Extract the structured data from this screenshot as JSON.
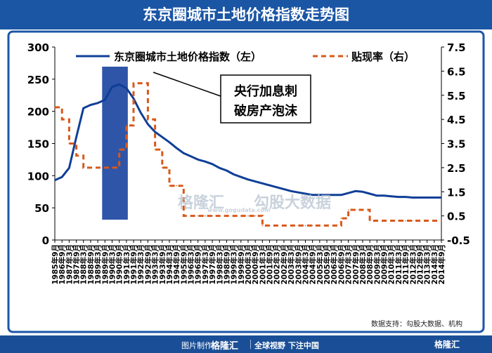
{
  "header": {
    "title": "东京圈城市土地价格指数走势图"
  },
  "source": "数据支持：勾股大数据、机构",
  "annotation": {
    "line1": "央行加息刺",
    "line2": "破房产泡沫"
  },
  "watermark": {
    "left": "格隆汇",
    "right": "勾股大数据",
    "sub": "www.gogudata.com"
  },
  "footer": {
    "made_by": "图片制作：",
    "brand": "格隆汇",
    "slogan": "全球视野 下注中国",
    "brand_right": "格隆汇"
  },
  "colors": {
    "index": "#0f3f97",
    "rate": "#d9581a",
    "shade": "#2f55a8",
    "frame": "#1b56a5"
  },
  "chart_data": {
    "type": "line",
    "x_ticks": [
      "1985年9月",
      "1986年9月",
      "1987年3月",
      "1987年9月",
      "1988年3月",
      "1988年9月",
      "1989年3月",
      "1989年9月",
      "1990年3月",
      "1990年9月",
      "1991年3月",
      "1991年9月",
      "1992年3月",
      "1992年9月",
      "1993年3月",
      "1993年9月",
      "1994年3月",
      "1994年9月",
      "1995年9月",
      "1996年3月",
      "1996年9月",
      "1997年3月",
      "1997年9月",
      "1998年3月",
      "1998年9月",
      "1999年3月",
      "1999年9月",
      "2000年3月",
      "2000年9月",
      "2001年3月",
      "2001年9月",
      "2002年3月",
      "2002年9月",
      "2003年3月",
      "2003年9月",
      "2004年3月",
      "2004年9月",
      "2005年3月",
      "2005年9月",
      "2006年3月",
      "2006年9月",
      "2007年3月",
      "2007年9月",
      "2008年3月",
      "2008年9月",
      "2009年3月",
      "2009年9月",
      "2010年3月",
      "2011年3月",
      "2011年9月",
      "2012年3月",
      "2012年9月",
      "2013年3月",
      "2014年3月",
      "2014年9月"
    ],
    "y_left": {
      "min": 0,
      "max": 300,
      "ticks": [
        "0",
        "50",
        "100",
        "150",
        "200",
        "250",
        "300"
      ]
    },
    "y_right": {
      "min": -0.5,
      "max": 7.5,
      "ticks": [
        "-0.5",
        "0.5",
        "1.5",
        "2.5",
        "3.5",
        "4.5",
        "5.5",
        "6.5",
        "7.5"
      ]
    },
    "highlight": {
      "from": "1989年9月",
      "to": "1991年3月"
    },
    "series": [
      {
        "name": "东京圈城市土地价格指数（左）",
        "axis": "left",
        "values": [
          93,
          98,
          112,
          160,
          205,
          210,
          213,
          218,
          238,
          242,
          236,
          220,
          198,
          180,
          168,
          160,
          152,
          143,
          135,
          130,
          125,
          122,
          118,
          112,
          108,
          102,
          98,
          94,
          91,
          88,
          85,
          82,
          79,
          76,
          74,
          72,
          70,
          70,
          70,
          70,
          70,
          73,
          76,
          75,
          72,
          69,
          69,
          68,
          67,
          67,
          66,
          66,
          66,
          66,
          66
        ]
      },
      {
        "name": "贴现率（右）",
        "axis": "right",
        "values": [
          5.0,
          4.5,
          3.5,
          3.0,
          2.5,
          2.5,
          2.5,
          2.5,
          2.5,
          3.25,
          4.25,
          6.0,
          6.0,
          4.5,
          3.25,
          2.5,
          1.75,
          1.75,
          0.5,
          0.5,
          0.5,
          0.5,
          0.5,
          0.5,
          0.5,
          0.5,
          0.5,
          0.5,
          0.5,
          0.1,
          0.1,
          0.1,
          0.1,
          0.1,
          0.1,
          0.1,
          0.1,
          0.1,
          0.1,
          0.1,
          0.4,
          0.75,
          0.75,
          0.75,
          0.3,
          0.3,
          0.3,
          0.3,
          0.3,
          0.3,
          0.3,
          0.3,
          0.3,
          0.3,
          0.3
        ]
      }
    ],
    "legend": "top"
  }
}
